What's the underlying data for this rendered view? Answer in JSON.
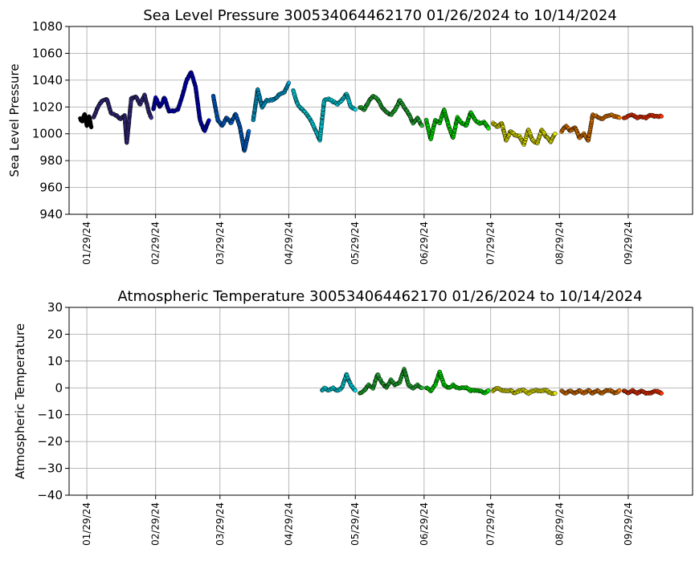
{
  "chart_data": [
    {
      "type": "scatter",
      "title": "Sea Level Pressure 300534064462170  01/26/2024 to 10/14/2024",
      "xlabel": "",
      "ylabel": "Sea Level Pressure",
      "ylim": [
        940,
        1080
      ],
      "yticks": [
        940,
        960,
        980,
        1000,
        1020,
        1040,
        1060,
        1080
      ],
      "ytick_labels": [
        "940",
        "960",
        "980",
        "1000",
        "1020",
        "1040",
        "1060",
        "1080"
      ],
      "xlim": [
        "2024-01-21",
        "2024-10-28"
      ],
      "xticks": [
        "2024-01-29",
        "2024-02-29",
        "2024-03-29",
        "2024-04-29",
        "2024-05-29",
        "2024-06-29",
        "2024-07-29",
        "2024-08-29",
        "2024-09-29"
      ],
      "xtick_labels": [
        "01/29/24",
        "02/29/24",
        "03/29/24",
        "04/29/24",
        "05/29/24",
        "06/29/24",
        "07/29/24",
        "08/29/24",
        "09/29/24"
      ],
      "grid": true,
      "color_by": "date",
      "segments": [
        {
          "color": "#000000",
          "points": [
            [
              "2024-01-26",
              1011
            ],
            [
              "2024-01-27",
              1009
            ],
            [
              "2024-01-28",
              1015
            ],
            [
              "2024-01-29",
              1006
            ],
            [
              "2024-01-30",
              1013
            ],
            [
              "2024-01-31",
              1005
            ]
          ]
        },
        {
          "color": "#3a2f8c",
          "points": [
            [
              "2024-02-01",
              1012
            ],
            [
              "2024-02-03",
              1020
            ],
            [
              "2024-02-05",
              1025
            ],
            [
              "2024-02-07",
              1026
            ],
            [
              "2024-02-09",
              1015
            ],
            [
              "2024-02-11",
              1014
            ],
            [
              "2024-02-13",
              1011
            ],
            [
              "2024-02-15",
              1014
            ],
            [
              "2024-02-16",
              993
            ],
            [
              "2024-02-18",
              1026
            ],
            [
              "2024-02-20",
              1028
            ],
            [
              "2024-02-22",
              1022
            ],
            [
              "2024-02-24",
              1029
            ],
            [
              "2024-02-26",
              1016
            ],
            [
              "2024-02-27",
              1012
            ]
          ]
        },
        {
          "color": "#0000d0",
          "points": [
            [
              "2024-02-28",
              1018
            ],
            [
              "2024-02-29",
              1027
            ],
            [
              "2024-03-02",
              1020
            ],
            [
              "2024-03-04",
              1027
            ],
            [
              "2024-03-06",
              1017
            ],
            [
              "2024-03-08",
              1017
            ],
            [
              "2024-03-10",
              1018
            ],
            [
              "2024-03-12",
              1028
            ],
            [
              "2024-03-14",
              1040
            ],
            [
              "2024-03-16",
              1046
            ],
            [
              "2024-03-18",
              1035
            ],
            [
              "2024-03-20",
              1010
            ],
            [
              "2024-03-22",
              1002
            ],
            [
              "2024-03-24",
              1010
            ]
          ]
        },
        {
          "color": "#0066dd",
          "points": [
            [
              "2024-03-26",
              1028
            ],
            [
              "2024-03-28",
              1010
            ],
            [
              "2024-03-30",
              1006
            ],
            [
              "2024-04-01",
              1012
            ],
            [
              "2024-04-03",
              1008
            ],
            [
              "2024-04-05",
              1015
            ],
            [
              "2024-04-07",
              1005
            ],
            [
              "2024-04-09",
              987
            ],
            [
              "2024-04-11",
              1002
            ]
          ]
        },
        {
          "color": "#00a8e0",
          "points": [
            [
              "2024-04-13",
              1010
            ],
            [
              "2024-04-15",
              1033
            ],
            [
              "2024-04-17",
              1020
            ],
            [
              "2024-04-19",
              1025
            ],
            [
              "2024-04-21",
              1025
            ],
            [
              "2024-04-23",
              1026
            ],
            [
              "2024-04-25",
              1030
            ],
            [
              "2024-04-27",
              1031
            ],
            [
              "2024-04-29",
              1038
            ]
          ]
        },
        {
          "color": "#00e0ee",
          "points": [
            [
              "2024-05-01",
              1032
            ],
            [
              "2024-05-03",
              1022
            ],
            [
              "2024-05-05",
              1018
            ],
            [
              "2024-05-07",
              1015
            ],
            [
              "2024-05-09",
              1010
            ],
            [
              "2024-05-11",
              1003
            ],
            [
              "2024-05-13",
              995
            ],
            [
              "2024-05-15",
              1025
            ],
            [
              "2024-05-17",
              1026
            ],
            [
              "2024-05-19",
              1024
            ],
            [
              "2024-05-21",
              1022
            ],
            [
              "2024-05-23",
              1025
            ],
            [
              "2024-05-25",
              1030
            ],
            [
              "2024-05-27",
              1020
            ],
            [
              "2024-05-29",
              1018
            ]
          ]
        },
        {
          "color": "#22b833",
          "points": [
            [
              "2024-05-31",
              1020
            ],
            [
              "2024-06-02",
              1018
            ],
            [
              "2024-06-04",
              1024
            ],
            [
              "2024-06-06",
              1028
            ],
            [
              "2024-06-08",
              1026
            ],
            [
              "2024-06-10",
              1020
            ],
            [
              "2024-06-12",
              1016
            ],
            [
              "2024-06-14",
              1014
            ],
            [
              "2024-06-16",
              1018
            ],
            [
              "2024-06-18",
              1025
            ],
            [
              "2024-06-20",
              1020
            ],
            [
              "2024-06-22",
              1015
            ],
            [
              "2024-06-24",
              1008
            ],
            [
              "2024-06-26",
              1012
            ],
            [
              "2024-06-28",
              1006
            ]
          ]
        },
        {
          "color": "#00ee00",
          "points": [
            [
              "2024-06-30",
              1010
            ],
            [
              "2024-07-02",
              996
            ],
            [
              "2024-07-04",
              1010
            ],
            [
              "2024-07-06",
              1008
            ],
            [
              "2024-07-08",
              1018
            ],
            [
              "2024-07-10",
              1006
            ],
            [
              "2024-07-12",
              997
            ],
            [
              "2024-07-14",
              1012
            ],
            [
              "2024-07-16",
              1008
            ],
            [
              "2024-07-18",
              1006
            ],
            [
              "2024-07-20",
              1016
            ],
            [
              "2024-07-22",
              1010
            ],
            [
              "2024-07-24",
              1008
            ],
            [
              "2024-07-26",
              1009
            ],
            [
              "2024-07-28",
              1004
            ]
          ]
        },
        {
          "color": "#eeee00",
          "points": [
            [
              "2024-07-30",
              1008
            ],
            [
              "2024-08-01",
              1005
            ],
            [
              "2024-08-03",
              1008
            ],
            [
              "2024-08-05",
              995
            ],
            [
              "2024-08-07",
              1002
            ],
            [
              "2024-08-09",
              999
            ],
            [
              "2024-08-11",
              998
            ],
            [
              "2024-08-13",
              992
            ],
            [
              "2024-08-15",
              1003
            ],
            [
              "2024-08-17",
              995
            ],
            [
              "2024-08-19",
              993
            ],
            [
              "2024-08-21",
              1003
            ],
            [
              "2024-08-23",
              998
            ],
            [
              "2024-08-25",
              994
            ],
            [
              "2024-08-27",
              1000
            ]
          ]
        },
        {
          "color": "#f07d00",
          "points": [
            [
              "2024-08-30",
              1002
            ],
            [
              "2024-09-01",
              1006
            ],
            [
              "2024-09-03",
              1002
            ],
            [
              "2024-09-05",
              1005
            ],
            [
              "2024-09-07",
              997
            ],
            [
              "2024-09-09",
              1000
            ],
            [
              "2024-09-11",
              995
            ],
            [
              "2024-09-13",
              1014
            ],
            [
              "2024-09-15",
              1013
            ],
            [
              "2024-09-17",
              1011
            ],
            [
              "2024-09-19",
              1013
            ],
            [
              "2024-09-21",
              1014
            ],
            [
              "2024-09-23",
              1013
            ],
            [
              "2024-09-25",
              1012
            ]
          ]
        },
        {
          "color": "#ff3300",
          "points": [
            [
              "2024-09-27",
              1012
            ],
            [
              "2024-09-29",
              1013
            ],
            [
              "2024-10-01",
              1014
            ],
            [
              "2024-10-03",
              1012
            ],
            [
              "2024-10-05",
              1013
            ],
            [
              "2024-10-07",
              1012
            ],
            [
              "2024-10-09",
              1014
            ],
            [
              "2024-10-11",
              1013
            ],
            [
              "2024-10-14",
              1013
            ]
          ]
        }
      ]
    },
    {
      "type": "scatter",
      "title": "Atmospheric Temperature 300534064462170  01/26/2024 to 10/14/2024",
      "xlabel": "",
      "ylabel": "Atmospheric Temperature",
      "ylim": [
        -40,
        30
      ],
      "yticks": [
        -40,
        -30,
        -20,
        -10,
        0,
        10,
        20,
        30
      ],
      "ytick_labels": [
        "−40",
        "−30",
        "−20",
        "−10",
        "0",
        "10",
        "20",
        "30"
      ],
      "xlim": [
        "2024-01-21",
        "2024-10-28"
      ],
      "xticks": [
        "2024-01-29",
        "2024-02-29",
        "2024-03-29",
        "2024-04-29",
        "2024-05-29",
        "2024-06-29",
        "2024-07-29",
        "2024-08-29",
        "2024-09-29"
      ],
      "xtick_labels": [
        "01/29/24",
        "02/29/24",
        "03/29/24",
        "04/29/24",
        "05/29/24",
        "06/29/24",
        "07/29/24",
        "08/29/24",
        "09/29/24"
      ],
      "grid": true,
      "color_by": "date",
      "segments": [
        {
          "color": "#00e0ee",
          "points": [
            [
              "2024-05-14",
              -1
            ],
            [
              "2024-05-15",
              0
            ],
            [
              "2024-05-17",
              -1
            ],
            [
              "2024-05-19",
              0
            ],
            [
              "2024-05-21",
              -1
            ],
            [
              "2024-05-23",
              0
            ],
            [
              "2024-05-25",
              5
            ],
            [
              "2024-05-27",
              1
            ],
            [
              "2024-05-29",
              -1
            ]
          ]
        },
        {
          "color": "#22b833",
          "points": [
            [
              "2024-05-31",
              -2
            ],
            [
              "2024-06-02",
              -1
            ],
            [
              "2024-06-04",
              1
            ],
            [
              "2024-06-06",
              0
            ],
            [
              "2024-06-08",
              5
            ],
            [
              "2024-06-10",
              2
            ],
            [
              "2024-06-12",
              0
            ],
            [
              "2024-06-14",
              3
            ],
            [
              "2024-06-16",
              1
            ],
            [
              "2024-06-18",
              2
            ],
            [
              "2024-06-20",
              7
            ],
            [
              "2024-06-22",
              1
            ],
            [
              "2024-06-24",
              0
            ],
            [
              "2024-06-26",
              1
            ],
            [
              "2024-06-28",
              0
            ]
          ]
        },
        {
          "color": "#00ee00",
          "points": [
            [
              "2024-06-30",
              0
            ],
            [
              "2024-07-02",
              -1
            ],
            [
              "2024-07-04",
              1
            ],
            [
              "2024-07-06",
              6
            ],
            [
              "2024-07-08",
              1
            ],
            [
              "2024-07-10",
              0
            ],
            [
              "2024-07-12",
              1
            ],
            [
              "2024-07-14",
              0
            ],
            [
              "2024-07-16",
              0
            ],
            [
              "2024-07-18",
              0
            ],
            [
              "2024-07-20",
              -1
            ],
            [
              "2024-07-22",
              -1
            ],
            [
              "2024-07-24",
              -1
            ],
            [
              "2024-07-26",
              -2
            ],
            [
              "2024-07-28",
              -1
            ]
          ]
        },
        {
          "color": "#eeee00",
          "points": [
            [
              "2024-07-30",
              -1
            ],
            [
              "2024-08-01",
              0
            ],
            [
              "2024-08-03",
              -1
            ],
            [
              "2024-08-05",
              -1
            ],
            [
              "2024-08-07",
              -1
            ],
            [
              "2024-08-09",
              -2
            ],
            [
              "2024-08-11",
              -1
            ],
            [
              "2024-08-13",
              -1
            ],
            [
              "2024-08-15",
              -2
            ],
            [
              "2024-08-17",
              -1
            ],
            [
              "2024-08-19",
              -1
            ],
            [
              "2024-08-21",
              -1
            ],
            [
              "2024-08-23",
              -1
            ],
            [
              "2024-08-25",
              -2
            ],
            [
              "2024-08-27",
              -2
            ]
          ]
        },
        {
          "color": "#f07d00",
          "points": [
            [
              "2024-08-30",
              -1
            ],
            [
              "2024-09-01",
              -2
            ],
            [
              "2024-09-03",
              -1
            ],
            [
              "2024-09-05",
              -2
            ],
            [
              "2024-09-07",
              -1
            ],
            [
              "2024-09-09",
              -2
            ],
            [
              "2024-09-11",
              -1
            ],
            [
              "2024-09-13",
              -2
            ],
            [
              "2024-09-15",
              -1
            ],
            [
              "2024-09-17",
              -2
            ],
            [
              "2024-09-19",
              -1
            ],
            [
              "2024-09-21",
              -1
            ],
            [
              "2024-09-23",
              -2
            ],
            [
              "2024-09-25",
              -1
            ]
          ]
        },
        {
          "color": "#ff3300",
          "points": [
            [
              "2024-09-27",
              -1
            ],
            [
              "2024-09-29",
              -2
            ],
            [
              "2024-10-01",
              -1
            ],
            [
              "2024-10-03",
              -2
            ],
            [
              "2024-10-05",
              -1
            ],
            [
              "2024-10-07",
              -2
            ],
            [
              "2024-10-09",
              -2
            ],
            [
              "2024-10-11",
              -1
            ],
            [
              "2024-10-14",
              -2
            ]
          ]
        }
      ]
    }
  ]
}
